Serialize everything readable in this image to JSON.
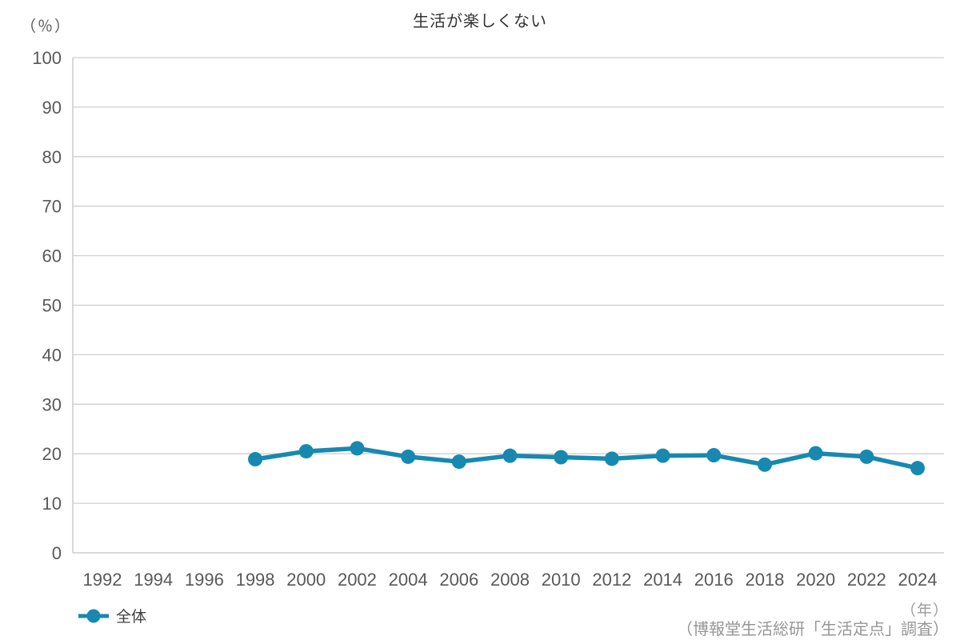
{
  "title": "生活が楽しくない",
  "labels": {
    "y_unit": "（％）",
    "x_unit": "（年）",
    "source": "（博報堂生活総研「生活定点」調査）"
  },
  "legend": {
    "label": "全体"
  },
  "colors": {
    "line": "#1789b0",
    "marker": "#1789b0",
    "grid": "#cfcfcf",
    "axis": "#c4c4c4",
    "tick_text": "#595959",
    "title_text": "#333333",
    "note_text": "#969696"
  },
  "chart_data": {
    "type": "line",
    "title": "生活が楽しくない",
    "xlabel": "年",
    "ylabel": "％",
    "x_categories": [
      1992,
      1994,
      1996,
      1998,
      2000,
      2002,
      2004,
      2006,
      2008,
      2010,
      2012,
      2014,
      2016,
      2018,
      2020,
      2022,
      2024
    ],
    "ylim": [
      0,
      100
    ],
    "ytick_step": 10,
    "grid": true,
    "legend_position": "bottom-left",
    "series": [
      {
        "name": "全体",
        "color": "#1789b0",
        "points": [
          [
            1998,
            18.9
          ],
          [
            2000,
            20.5
          ],
          [
            2002,
            21.1
          ],
          [
            2004,
            19.4
          ],
          [
            2006,
            18.4
          ],
          [
            2008,
            19.6
          ],
          [
            2010,
            19.3
          ],
          [
            2012,
            19.0
          ],
          [
            2014,
            19.6
          ],
          [
            2016,
            19.7
          ],
          [
            2018,
            17.8
          ],
          [
            2020,
            20.1
          ],
          [
            2022,
            19.4
          ],
          [
            2024,
            17.1
          ]
        ]
      }
    ]
  }
}
